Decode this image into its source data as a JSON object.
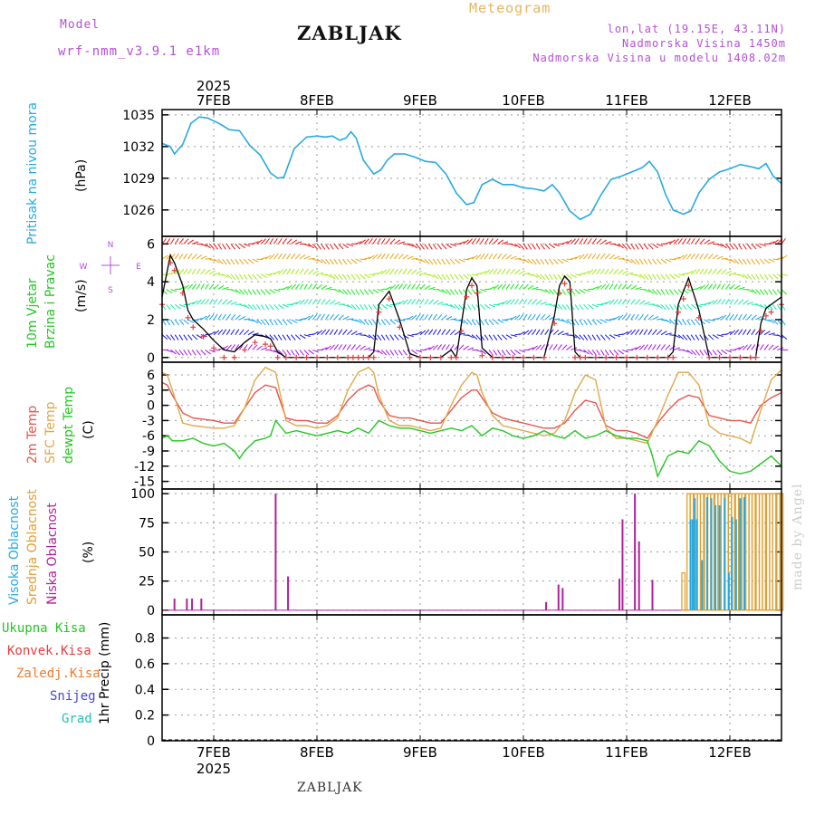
{
  "header": {
    "model_label": "Model",
    "model_name": "wrf-nmm_v3.9.1 e1km",
    "location": "ZABLJAK",
    "meteogram": "Meteogram",
    "coords": "lon,lat (19.15E, 43.11N)",
    "elevation": "Nadmorska Visina 1450m",
    "model_elevation": "Nadmorska Visina u modelu 1408.02m",
    "footer_location": "ZABLJAK",
    "credit": "made by Angel"
  },
  "colors": {
    "pressure": "#26a9e0",
    "temp2m": "#e8544b",
    "sfc": "#e0a84a",
    "dewpt": "#22c722",
    "high_cloud": "#26a9e0",
    "mid_cloud": "#e0a030",
    "low_cloud": "#b0209a",
    "wind_markers": "#e83c3c"
  },
  "chart_data": [
    {
      "type": "line",
      "panel": "pressure",
      "ylabel": [
        "Pritisak na nivou mora",
        "(hPa)"
      ],
      "yticks": [
        1026,
        1029,
        1032,
        1035
      ],
      "ylim": [
        1023.5,
        1035.5
      ],
      "grid": true,
      "xlim_days": [
        6.5,
        12.5
      ],
      "series": [
        {
          "x": [
            6.5,
            6.58,
            6.62,
            6.7,
            6.78,
            6.86,
            6.94,
            7.05,
            7.15,
            7.25,
            7.35,
            7.45,
            7.55,
            7.62,
            7.68,
            7.78,
            7.9,
            8.0,
            8.08,
            8.15,
            8.22,
            8.28,
            8.33,
            8.38,
            8.45,
            8.55,
            8.62,
            8.68,
            8.75,
            8.85,
            8.95,
            9.05,
            9.15,
            9.25,
            9.35,
            9.45,
            9.52,
            9.6,
            9.7,
            9.8,
            9.9,
            10.0,
            10.1,
            10.2,
            10.28,
            10.35,
            10.45,
            10.55,
            10.65,
            10.75,
            10.85,
            10.95,
            11.05,
            11.15,
            11.22,
            11.3,
            11.38,
            11.45,
            11.55,
            11.62,
            11.7,
            11.8,
            11.9,
            12.0,
            12.1,
            12.2,
            12.28,
            12.35,
            12.42,
            12.5
          ],
          "values": [
            1032.3,
            1032.0,
            1031.3,
            1032.2,
            1034.2,
            1034.8,
            1034.7,
            1034.2,
            1033.6,
            1033.5,
            1032.1,
            1031.2,
            1029.5,
            1029.0,
            1029.1,
            1031.8,
            1032.9,
            1033.0,
            1032.9,
            1033.0,
            1032.6,
            1032.8,
            1033.4,
            1032.8,
            1030.7,
            1029.4,
            1029.8,
            1030.7,
            1031.3,
            1031.3,
            1031.0,
            1030.6,
            1030.5,
            1029.4,
            1027.6,
            1026.5,
            1026.7,
            1028.4,
            1028.9,
            1028.4,
            1028.4,
            1028.1,
            1028.0,
            1027.8,
            1028.4,
            1027.6,
            1025.9,
            1025.1,
            1025.6,
            1027.4,
            1028.9,
            1029.2,
            1029.6,
            1030.0,
            1030.6,
            1029.6,
            1027.4,
            1026.0,
            1025.6,
            1025.9,
            1027.6,
            1028.9,
            1029.6,
            1029.9,
            1030.3,
            1030.1,
            1029.9,
            1030.4,
            1029.2,
            1028.5
          ]
        }
      ],
      "xlabel_top": "2025"
    },
    {
      "type": "line",
      "panel": "wind",
      "ylabel": [
        "10m Vjetar",
        "Brzina i Pravac",
        "(m/s)"
      ],
      "compass": [
        "N",
        "S",
        "W",
        "E"
      ],
      "yticks": [
        0,
        2,
        4,
        6
      ],
      "ylim": [
        -0.25,
        6.4
      ],
      "grid": true,
      "series": [
        {
          "name": "speed",
          "x": [
            6.5,
            6.58,
            6.62,
            6.7,
            6.75,
            6.8,
            6.9,
            7.0,
            7.1,
            7.2,
            7.3,
            7.4,
            7.5,
            7.55,
            7.62,
            7.7,
            7.8,
            7.9,
            8.0,
            8.1,
            8.2,
            8.3,
            8.35,
            8.4,
            8.45,
            8.5,
            8.55,
            8.6,
            8.7,
            8.8,
            8.9,
            9.0,
            9.1,
            9.2,
            9.3,
            9.35,
            9.4,
            9.45,
            9.5,
            9.55,
            9.6,
            9.7,
            9.8,
            9.9,
            10.0,
            10.1,
            10.2,
            10.3,
            10.35,
            10.4,
            10.45,
            10.5,
            10.55,
            10.6,
            10.7,
            10.8,
            10.9,
            11.0,
            11.1,
            11.2,
            11.3,
            11.4,
            11.45,
            11.5,
            11.55,
            11.6,
            11.7,
            11.8,
            11.9,
            12.0,
            12.1,
            12.2,
            12.25,
            12.3,
            12.35,
            12.4,
            12.5
          ],
          "values": [
            3.2,
            5.4,
            5.0,
            3.8,
            2.5,
            2.0,
            1.5,
            0.9,
            0.4,
            0.3,
            0.8,
            1.2,
            1.1,
            1.0,
            0.3,
            0.0,
            0.0,
            0.0,
            0.0,
            0.0,
            0.0,
            0.0,
            0.0,
            0.0,
            0.0,
            0.0,
            0.3,
            2.8,
            3.5,
            2.0,
            0.2,
            0.0,
            0.0,
            0.0,
            0.4,
            0.0,
            1.8,
            3.6,
            4.2,
            3.8,
            0.5,
            0.0,
            0.0,
            0.0,
            0.0,
            0.0,
            0.0,
            2.2,
            3.8,
            4.3,
            4.0,
            0.3,
            0.0,
            0.0,
            0.0,
            0.0,
            0.0,
            0.0,
            0.0,
            0.0,
            0.0,
            0.0,
            0.3,
            2.8,
            3.5,
            4.2,
            2.5,
            0.0,
            0.0,
            0.0,
            0.0,
            0.0,
            0.0,
            1.8,
            2.6,
            2.8,
            3.2
          ]
        }
      ]
    },
    {
      "type": "line",
      "panel": "temperature",
      "ylabel": [
        "2m Temp",
        "SFC Temp",
        "dewpt Temp",
        "(C)"
      ],
      "yticks": [
        -15,
        -12,
        -9,
        -6,
        -3,
        0,
        3,
        6
      ],
      "ylim": [
        -16.5,
        8.5
      ],
      "grid": true,
      "series": [
        {
          "name": "2m Temp",
          "x": [
            6.5,
            6.55,
            6.6,
            6.7,
            6.8,
            7.0,
            7.1,
            7.2,
            7.3,
            7.4,
            7.5,
            7.6,
            7.7,
            7.8,
            7.9,
            8.0,
            8.1,
            8.2,
            8.3,
            8.4,
            8.5,
            8.55,
            8.6,
            8.7,
            8.8,
            8.9,
            9.0,
            9.1,
            9.2,
            9.3,
            9.4,
            9.5,
            9.55,
            9.6,
            9.7,
            9.8,
            9.9,
            10.0,
            10.1,
            10.2,
            10.3,
            10.4,
            10.5,
            10.6,
            10.7,
            10.8,
            10.9,
            11.0,
            11.1,
            11.2,
            11.3,
            11.4,
            11.5,
            11.6,
            11.7,
            11.8,
            11.9,
            12.0,
            12.1,
            12.2,
            12.3,
            12.4,
            12.5
          ],
          "values": [
            4.5,
            4.0,
            2.0,
            -1.5,
            -2.5,
            -3.0,
            -3.5,
            -3.5,
            -0.5,
            2.5,
            4.0,
            3.5,
            -2.5,
            -3.0,
            -3.0,
            -3.5,
            -3.5,
            -2.0,
            1.0,
            3.0,
            4.0,
            3.5,
            1.0,
            -2.0,
            -2.5,
            -2.5,
            -3.0,
            -3.5,
            -3.5,
            -1.0,
            1.5,
            3.0,
            3.0,
            1.5,
            -1.5,
            -2.5,
            -3.0,
            -3.5,
            -4.0,
            -4.5,
            -4.5,
            -3.5,
            -1.0,
            1.0,
            0.5,
            -4.0,
            -5.0,
            -5.0,
            -5.5,
            -6.5,
            -3.5,
            -1.0,
            1.0,
            2.0,
            1.5,
            -2.0,
            -2.5,
            -3.0,
            -3.0,
            -3.5,
            0.0,
            1.5,
            2.5
          ]
        },
        {
          "name": "SFC Temp",
          "x": [
            6.5,
            6.55,
            6.6,
            6.7,
            6.8,
            7.0,
            7.1,
            7.2,
            7.3,
            7.4,
            7.5,
            7.6,
            7.7,
            7.8,
            7.9,
            8.0,
            8.1,
            8.2,
            8.3,
            8.4,
            8.5,
            8.55,
            8.6,
            8.7,
            8.8,
            8.9,
            9.0,
            9.1,
            9.2,
            9.3,
            9.4,
            9.5,
            9.55,
            9.6,
            9.7,
            9.8,
            9.9,
            10.0,
            10.1,
            10.2,
            10.3,
            10.4,
            10.5,
            10.6,
            10.7,
            10.8,
            10.9,
            11.0,
            11.1,
            11.2,
            11.3,
            11.4,
            11.5,
            11.6,
            11.7,
            11.8,
            11.9,
            12.0,
            12.1,
            12.2,
            12.3,
            12.4,
            12.5
          ],
          "values": [
            6.5,
            6.0,
            3.0,
            -3.5,
            -4.0,
            -4.5,
            -4.5,
            -4.0,
            -0.5,
            5.0,
            7.5,
            6.5,
            -3.0,
            -4.0,
            -4.0,
            -4.5,
            -4.0,
            -2.5,
            3.0,
            6.5,
            7.5,
            6.5,
            2.0,
            -3.0,
            -4.0,
            -4.0,
            -4.5,
            -5.0,
            -4.5,
            0.0,
            4.0,
            6.5,
            6.0,
            2.5,
            -2.0,
            -4.0,
            -4.5,
            -5.0,
            -5.5,
            -6.0,
            -5.5,
            -3.0,
            2.5,
            6.0,
            5.0,
            -4.5,
            -6.5,
            -6.5,
            -7.0,
            -7.5,
            -3.0,
            2.0,
            6.5,
            6.5,
            4.0,
            -4.0,
            -5.5,
            -6.0,
            -6.5,
            -7.5,
            -1.0,
            5.0,
            7.0
          ]
        },
        {
          "name": "dewpt Temp",
          "x": [
            6.5,
            6.55,
            6.6,
            6.7,
            6.8,
            6.9,
            7.0,
            7.1,
            7.2,
            7.25,
            7.3,
            7.4,
            7.5,
            7.55,
            7.6,
            7.7,
            7.8,
            7.9,
            8.0,
            8.1,
            8.2,
            8.3,
            8.4,
            8.5,
            8.6,
            8.7,
            8.8,
            8.9,
            9.0,
            9.1,
            9.2,
            9.3,
            9.4,
            9.5,
            9.6,
            9.7,
            9.8,
            9.9,
            10.0,
            10.1,
            10.2,
            10.3,
            10.4,
            10.5,
            10.6,
            10.7,
            10.8,
            10.9,
            11.0,
            11.1,
            11.2,
            11.25,
            11.3,
            11.4,
            11.5,
            11.6,
            11.7,
            11.8,
            11.9,
            12.0,
            12.1,
            12.2,
            12.3,
            12.4,
            12.5
          ],
          "values": [
            -6.5,
            -6.0,
            -7.0,
            -7.0,
            -6.5,
            -7.5,
            -8.0,
            -7.5,
            -9.0,
            -10.5,
            -9.0,
            -7.0,
            -6.5,
            -6.0,
            -3.0,
            -5.5,
            -5.0,
            -5.5,
            -6.0,
            -5.5,
            -5.0,
            -5.5,
            -4.5,
            -5.5,
            -3.0,
            -4.0,
            -4.5,
            -4.5,
            -5.0,
            -5.5,
            -5.0,
            -4.5,
            -5.0,
            -4.0,
            -6.0,
            -4.5,
            -5.0,
            -6.0,
            -6.5,
            -6.0,
            -5.0,
            -6.0,
            -6.5,
            -5.0,
            -6.5,
            -6.0,
            -5.0,
            -6.0,
            -6.5,
            -6.5,
            -7.0,
            -10.0,
            -14.0,
            -10.0,
            -9.0,
            -9.5,
            -7.0,
            -8.0,
            -11.0,
            -13.0,
            -13.5,
            -13.0,
            -11.5,
            -10.0,
            -12.0
          ]
        }
      ]
    },
    {
      "type": "bar",
      "panel": "cloud",
      "ylabel": [
        "Visoka Oblacnost",
        "Srednja Oblacnost",
        "Niska Oblacnost",
        "(%)"
      ],
      "yticks": [
        0,
        25,
        50,
        75,
        100
      ],
      "ylim": [
        -4,
        104
      ],
      "grid": true,
      "series": [
        {
          "name": "Niska Oblacnost",
          "x": [
            6.62,
            6.74,
            6.79,
            6.88,
            7.6,
            7.72,
            10.22,
            10.34,
            10.38,
            10.93,
            10.96,
            11.08,
            11.12,
            11.25
          ],
          "values": [
            10,
            10,
            10,
            10,
            100,
            29,
            7,
            22,
            19,
            27,
            78,
            100,
            59,
            26
          ]
        },
        {
          "name": "Srednja Oblacnost",
          "x": [
            11.55,
            11.6,
            11.63,
            11.67,
            11.7,
            11.73,
            11.77,
            11.8,
            11.83,
            11.87,
            11.9,
            11.93,
            11.97,
            12.0,
            12.03,
            12.07,
            12.1,
            12.13,
            12.17,
            12.2,
            12.23,
            12.27,
            12.3,
            12.33,
            12.37,
            12.4,
            12.43,
            12.47,
            12.5
          ],
          "values": [
            32,
            100,
            100,
            100,
            100,
            100,
            100,
            100,
            100,
            100,
            100,
            100,
            100,
            100,
            100,
            100,
            100,
            100,
            100,
            100,
            100,
            100,
            100,
            100,
            100,
            100,
            100,
            100,
            100
          ]
        },
        {
          "name": "Visoka Oblacnost",
          "x": [
            11.62,
            11.64,
            11.66,
            11.68,
            11.73,
            11.78,
            11.82,
            11.86,
            11.9,
            11.95,
            11.99,
            12.02,
            12.06,
            12.1,
            12.14
          ],
          "values": [
            78,
            78,
            96,
            78,
            43,
            97,
            96,
            90,
            90,
            96,
            32,
            80,
            78,
            96,
            97
          ]
        }
      ]
    },
    {
      "type": "line",
      "panel": "precip",
      "ylabel": [
        "1hr Precip (mm)"
      ],
      "legend": [
        "Ukupna Kisa",
        "Konvek.Kisa",
        "Zaledj.Kisa",
        "Snijeg",
        "Grad"
      ],
      "yticks": [
        0,
        0.2,
        0.4,
        0.6,
        0.8
      ],
      "ylim": [
        0,
        0.98
      ],
      "grid": true,
      "series": [],
      "xlabel_bottom": "2025"
    }
  ],
  "xaxis": {
    "day_labels": [
      "7FEB",
      "8FEB",
      "9FEB",
      "10FEB",
      "11FEB",
      "12FEB"
    ],
    "day_values": [
      7,
      8,
      9,
      10,
      11,
      12
    ],
    "year": "2025"
  }
}
